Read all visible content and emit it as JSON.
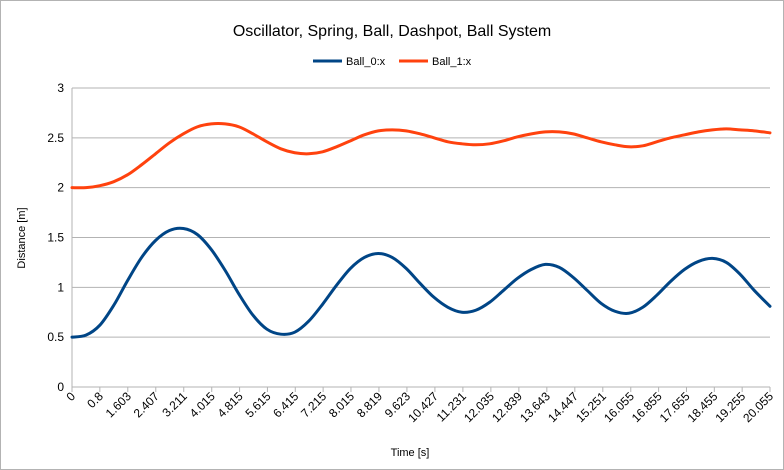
{
  "chart_data": {
    "type": "line",
    "title": "Oscillator, Spring, Ball, Dashpot, Ball System",
    "xlabel": "Time [s]",
    "ylabel": "Distance [m]",
    "ylim": [
      0,
      3
    ],
    "yticks": [
      "0",
      "0.5",
      "1",
      "1.5",
      "2",
      "2.5",
      "3"
    ],
    "x_categories": [
      "0",
      "0.8",
      "1.603",
      "2.407",
      "3.211",
      "4.015",
      "4.815",
      "5.615",
      "6.415",
      "7.215",
      "8.015",
      "8.819",
      "9.623",
      "10.427",
      "11.231",
      "12.035",
      "12.839",
      "13.643",
      "14.447",
      "15.251",
      "16.055",
      "16.855",
      "17.655",
      "18.455",
      "19.255",
      "20.055"
    ],
    "grid": "horizontal",
    "legend_position": "top",
    "series": [
      {
        "name": "Ball_0:x",
        "color": "#004586",
        "x": [
          0,
          0.4,
          0.8,
          1.2,
          1.6,
          2.0,
          2.4,
          2.8,
          3.2,
          3.6,
          4.0,
          4.4,
          4.8,
          5.2,
          5.6,
          6.0,
          6.4,
          6.8,
          7.2,
          7.6,
          8.0,
          8.4,
          8.8,
          9.2,
          9.6,
          10.0,
          10.4,
          10.8,
          11.2,
          11.6,
          12.0,
          12.4,
          12.8,
          13.2,
          13.6,
          14.0,
          14.4,
          14.8,
          15.2,
          15.6,
          16.0,
          16.4,
          16.8,
          17.2,
          17.6,
          18.0,
          18.4,
          18.8,
          19.2,
          19.6,
          20.055
        ],
        "y": [
          0.5,
          0.52,
          0.62,
          0.82,
          1.07,
          1.3,
          1.47,
          1.57,
          1.59,
          1.53,
          1.38,
          1.17,
          0.93,
          0.72,
          0.58,
          0.53,
          0.55,
          0.66,
          0.83,
          1.02,
          1.19,
          1.3,
          1.34,
          1.3,
          1.19,
          1.04,
          0.9,
          0.8,
          0.75,
          0.77,
          0.85,
          0.97,
          1.09,
          1.18,
          1.23,
          1.2,
          1.1,
          0.97,
          0.84,
          0.76,
          0.74,
          0.8,
          0.92,
          1.06,
          1.18,
          1.26,
          1.29,
          1.25,
          1.13,
          0.97,
          0.81
        ]
      },
      {
        "name": "Ball_1:x",
        "color": "#ff420e",
        "x": [
          0,
          0.4,
          0.8,
          1.2,
          1.6,
          2.0,
          2.4,
          2.8,
          3.2,
          3.6,
          4.0,
          4.4,
          4.8,
          5.2,
          5.6,
          6.0,
          6.4,
          6.8,
          7.2,
          7.6,
          8.0,
          8.4,
          8.8,
          9.2,
          9.6,
          10.0,
          10.4,
          10.8,
          11.2,
          11.6,
          12.0,
          12.4,
          12.8,
          13.2,
          13.6,
          14.0,
          14.4,
          14.8,
          15.2,
          15.6,
          16.0,
          16.4,
          16.8,
          17.2,
          17.6,
          18.0,
          18.4,
          18.8,
          19.2,
          19.6,
          20.055
        ],
        "y": [
          2.0,
          2.0,
          2.02,
          2.06,
          2.13,
          2.23,
          2.34,
          2.45,
          2.54,
          2.61,
          2.64,
          2.64,
          2.61,
          2.54,
          2.46,
          2.39,
          2.35,
          2.34,
          2.36,
          2.41,
          2.47,
          2.53,
          2.57,
          2.58,
          2.57,
          2.54,
          2.5,
          2.46,
          2.44,
          2.43,
          2.44,
          2.47,
          2.51,
          2.54,
          2.56,
          2.56,
          2.54,
          2.5,
          2.46,
          2.43,
          2.41,
          2.42,
          2.46,
          2.5,
          2.53,
          2.56,
          2.58,
          2.59,
          2.58,
          2.57,
          2.55
        ]
      }
    ]
  }
}
